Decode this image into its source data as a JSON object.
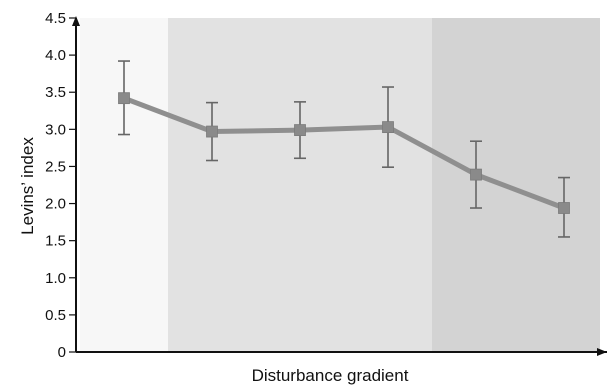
{
  "chart_data": {
    "type": "line",
    "title": "",
    "xlabel": "Disturbance gradient",
    "ylabel": "Levins’ index",
    "ylim": [
      0,
      4.5
    ],
    "yticks": [
      "0",
      "0.5",
      "1.0",
      "1.5",
      "2.0",
      "2.5",
      "3.0",
      "3.5",
      "4.0",
      "4.5"
    ],
    "grid": false,
    "legend": "none",
    "series": [
      {
        "x": [
          1,
          2,
          3,
          4,
          5,
          6
        ],
        "values": [
          3.42,
          2.97,
          2.99,
          3.03,
          2.39,
          1.94
        ],
        "error_low": [
          2.93,
          2.58,
          2.61,
          2.49,
          1.94,
          1.55
        ],
        "error_high": [
          3.92,
          3.36,
          3.37,
          3.57,
          2.84,
          2.35
        ],
        "line_color": "#8f8f8f",
        "marker_color": "#8a8a8a",
        "errorbar_color": "#666666",
        "marker": "square"
      }
    ],
    "background_bands": [
      {
        "from_point": 0.5,
        "to_point": 1.5,
        "color": "#f7f7f7"
      },
      {
        "from_point": 1.5,
        "to_point": 4.5,
        "color": "#e2e2e2"
      },
      {
        "from_point": 4.5,
        "to_point": 6.5,
        "color": "#d3d3d3"
      }
    ]
  }
}
